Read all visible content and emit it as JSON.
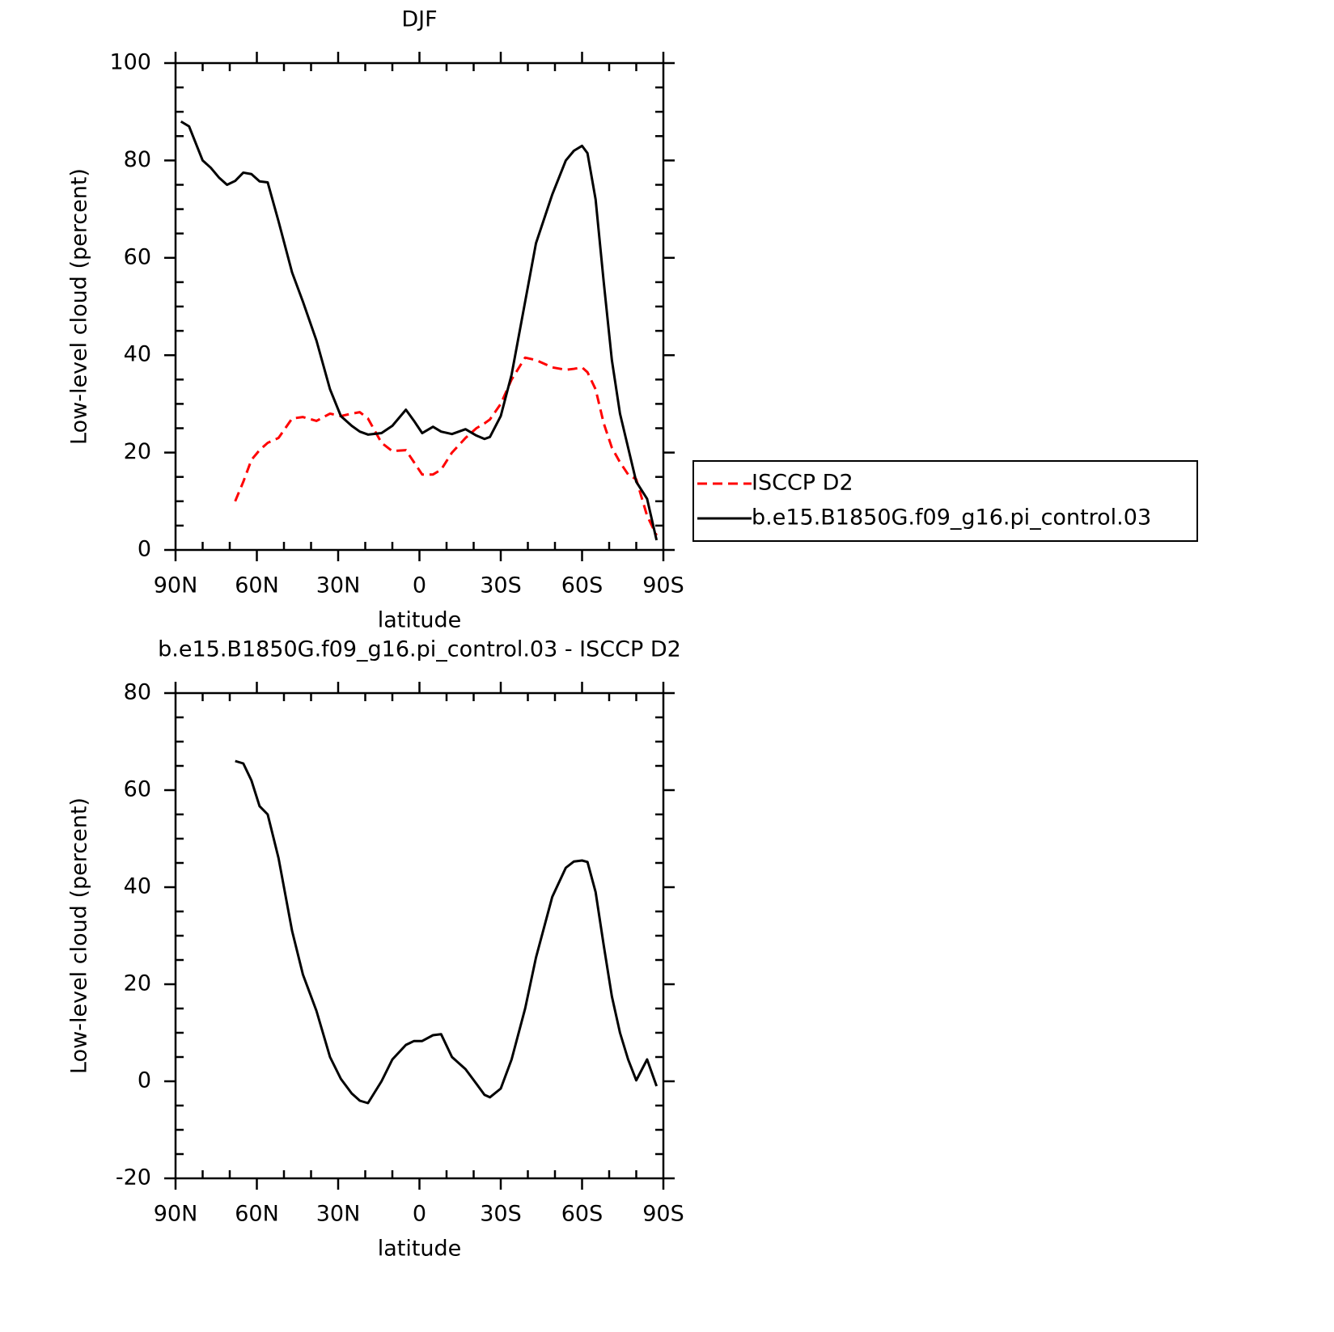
{
  "chart_data": [
    {
      "type": "line",
      "title": "DJF",
      "xlabel": "latitude",
      "ylabel": "Low-level cloud (percent)",
      "x": [
        88,
        85,
        80,
        77,
        74,
        71,
        68,
        65,
        62,
        59,
        56,
        52,
        47,
        43,
        38,
        33,
        29,
        25,
        22,
        19,
        14,
        10,
        5,
        2,
        -1,
        -5,
        -8,
        -12,
        -17,
        -21,
        -24,
        -26,
        -30,
        -34,
        -39,
        -43,
        -49,
        -54,
        -57,
        -60,
        -62,
        -65,
        -68,
        -71,
        -74,
        -77,
        -80,
        -84,
        -87.5
      ],
      "series": [
        {
          "name": "ISCCP D2",
          "color": "#ff0000",
          "dashed": true,
          "values": [
            null,
            null,
            null,
            null,
            null,
            null,
            10,
            14,
            18.5,
            20.5,
            22,
            23,
            27,
            27.3,
            26.5,
            28,
            27.5,
            28,
            28.3,
            27,
            22,
            20.3,
            20.5,
            18,
            15.5,
            15.5,
            16.5,
            20,
            23,
            25,
            26,
            26.8,
            30,
            35,
            39.5,
            39,
            37.5,
            37,
            37.2,
            37.5,
            36.5,
            33,
            26,
            21,
            18,
            15.5,
            14.5,
            7,
            3
          ]
        },
        {
          "name": "b.e15.B1850G.f09_g16.pi_control.03",
          "color": "#000000",
          "dashed": false,
          "values": [
            88,
            87,
            80,
            78.5,
            76.5,
            75,
            75.8,
            77.5,
            77.2,
            75.7,
            75.5,
            67.5,
            57,
            51,
            43,
            33,
            27.5,
            25.5,
            24.3,
            23.7,
            24,
            25.5,
            28.8,
            26.5,
            24,
            25.3,
            24.3,
            23.8,
            24.8,
            23.5,
            22.8,
            23.2,
            27.5,
            36,
            51,
            63,
            73,
            80,
            82,
            83,
            81.5,
            72,
            55,
            39,
            28,
            21,
            14,
            10.5,
            2
          ]
        }
      ],
      "xlim": [
        90,
        -90
      ],
      "xticks": [
        {
          "value": 90,
          "label": "90N"
        },
        {
          "value": 60,
          "label": "60N"
        },
        {
          "value": 30,
          "label": "30N"
        },
        0,
        {
          "value": -30,
          "label": "30S"
        },
        {
          "value": -60,
          "label": "60S"
        },
        {
          "value": -90,
          "label": "90S"
        }
      ],
      "ylim": [
        0,
        100
      ],
      "yticks": [
        0,
        20,
        40,
        60,
        80,
        100
      ],
      "legend": "right"
    },
    {
      "type": "line",
      "title": "b.e15.B1850G.f09_g16.pi_control.03 - ISCCP D2",
      "xlabel": "latitude",
      "ylabel": "Low-level cloud (percent)",
      "x": [
        88,
        85,
        80,
        77,
        74,
        71,
        68,
        65,
        62,
        59,
        56,
        52,
        47,
        43,
        38,
        33,
        29,
        25,
        22,
        19,
        14,
        10,
        5,
        2,
        -1,
        -5,
        -8,
        -12,
        -17,
        -21,
        -24,
        -26,
        -30,
        -34,
        -39,
        -43,
        -49,
        -54,
        -57,
        -60,
        -62,
        -65,
        -68,
        -71,
        -74,
        -77,
        -80,
        -84,
        -87.5
      ],
      "series": [
        {
          "color": "#000000",
          "dashed": false,
          "values": [
            null,
            null,
            null,
            null,
            null,
            null,
            66,
            65.5,
            62,
            56.7,
            55,
            46,
            31,
            22,
            14.5,
            5,
            0.5,
            -2.5,
            -4,
            -4.5,
            0,
            4.5,
            7.5,
            8.3,
            8.3,
            9.5,
            9.7,
            5,
            2.5,
            -0.5,
            -2.8,
            -3.3,
            -1.5,
            4.5,
            15,
            25.5,
            38,
            44,
            45.3,
            45.5,
            45.2,
            39,
            28,
            17.5,
            10,
            4.5,
            0.2,
            4.5,
            -1
          ]
        }
      ],
      "xlim": [
        90,
        -90
      ],
      "xticks": [
        {
          "value": 90,
          "label": "90N"
        },
        {
          "value": 60,
          "label": "60N"
        },
        {
          "value": 30,
          "label": "30N"
        },
        0,
        {
          "value": -30,
          "label": "30S"
        },
        {
          "value": -60,
          "label": "60S"
        },
        {
          "value": -90,
          "label": "90S"
        }
      ],
      "ylim": [
        -20,
        80
      ],
      "yticks": [
        -20,
        0,
        20,
        40,
        60,
        80
      ]
    }
  ]
}
